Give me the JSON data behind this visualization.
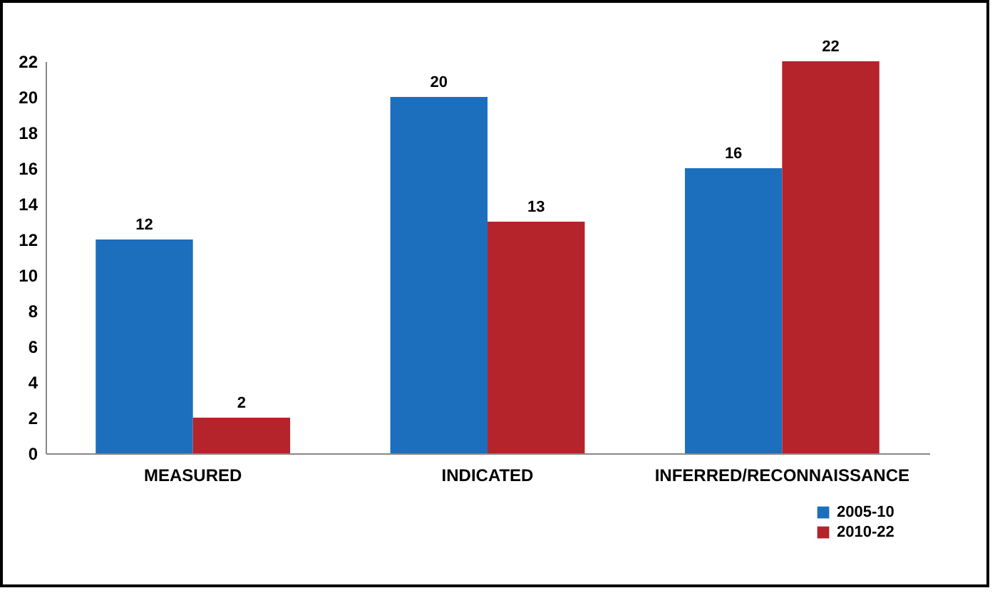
{
  "chart_data": {
    "type": "bar",
    "categories": [
      "MEASURED",
      "INDICATED",
      "INFERRED/RECONNAISSANCE"
    ],
    "series": [
      {
        "name": "2005-10",
        "color": "#1c6fbd",
        "values": [
          12,
          20,
          16
        ]
      },
      {
        "name": "2010-22",
        "color": "#b5232b",
        "values": [
          2,
          13,
          22
        ]
      }
    ],
    "ylim": [
      0,
      22
    ],
    "yticks": [
      0,
      2,
      4,
      6,
      8,
      10,
      12,
      14,
      16,
      18,
      20,
      22
    ],
    "grid": false,
    "legend": "bottom right",
    "data_labels": true
  }
}
